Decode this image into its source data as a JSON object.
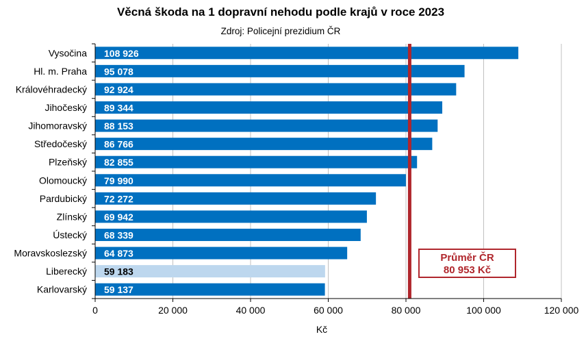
{
  "chart_data": {
    "type": "bar",
    "orientation": "horizontal",
    "title": "Věcná škoda na 1 dopravní nehodu podle krajů v roce 2023",
    "subtitle": "Zdroj: Policejní prezidium ČR",
    "xlabel": "Kč",
    "xlim": [
      0,
      120000
    ],
    "xticks": [
      0,
      20000,
      40000,
      60000,
      80000,
      100000,
      120000
    ],
    "xtick_labels": [
      "0",
      "20 000",
      "40 000",
      "60 000",
      "80 000",
      "100 000",
      "120 000"
    ],
    "grid": "vertical",
    "categories": [
      "Vysočina",
      "Hl. m. Praha",
      "Královéhradecký",
      "Jihočeský",
      "Jihomoravský",
      "Středočeský",
      "Plzeňský",
      "Olomoucký",
      "Pardubický",
      "Zlínský",
      "Ústecký",
      "Moravskoslezský",
      "Liberecký",
      "Karlovarský"
    ],
    "values": [
      108926,
      95078,
      92924,
      89344,
      88153,
      86766,
      82855,
      79990,
      72272,
      69942,
      68339,
      64873,
      59183,
      59137
    ],
    "value_labels": [
      "108 926",
      "95 078",
      "92 924",
      "89 344",
      "88 153",
      "86 766",
      "82 855",
      "79 990",
      "72 272",
      "69 942",
      "68 339",
      "64 873",
      "59 183",
      "59 137"
    ],
    "highlight_category": "Liberecký",
    "reference_line": {
      "value": 80953,
      "label_line1": "Průměr ČR",
      "label_line2": "80 953 Kč"
    },
    "colors": {
      "bar": "#0070c0",
      "highlight": "#bdd7ee",
      "reference": "#b0262c",
      "grid": "#c0c0c0"
    }
  }
}
